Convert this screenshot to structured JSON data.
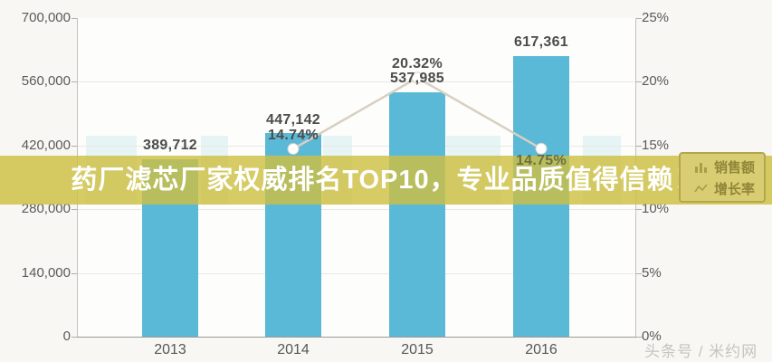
{
  "banner": {
    "text": "药厂滤芯厂家权威排名TOP10，专业品质值得信赖！"
  },
  "watermark": {
    "text": "头条号 / 米约网"
  },
  "legend": {
    "items": [
      {
        "label": "销售额",
        "icon": "bar-chart-icon"
      },
      {
        "label": "增长率",
        "icon": "line-chart-icon"
      }
    ]
  },
  "colors": {
    "bar": "#5ab9d7",
    "line": "#d8cfc2",
    "marker": "#ffffff",
    "banner": "#cdbf42",
    "legend_bg": "#d9cd74",
    "legend_border": "#b3a74e",
    "legend_text": "#8f8638",
    "label_text": "#4c4c4c",
    "watermark": "#c6c4c1"
  },
  "chart_data": {
    "type": "bar",
    "categories": [
      "2013",
      "2014",
      "2015",
      "2016"
    ],
    "series": [
      {
        "name": "销售额",
        "type": "bar",
        "values": [
          389712,
          447142,
          537985,
          617361
        ],
        "labels": [
          "389,712",
          "447,142",
          "537,985",
          "617,361"
        ]
      },
      {
        "name": "增长率",
        "type": "line",
        "values": [
          null,
          14.74,
          20.32,
          14.75
        ],
        "labels": [
          null,
          "14.74%",
          "20.32%",
          "14.75%"
        ]
      }
    ],
    "left_axis": {
      "ticks": [
        "0",
        "140,000",
        "280,000",
        "420,000",
        "560,000",
        "700,000"
      ],
      "values": [
        0,
        140000,
        280000,
        420000,
        560000,
        700000
      ],
      "range": [
        0,
        700000
      ]
    },
    "right_axis": {
      "ticks": [
        "0%",
        "5%",
        "10%",
        "15%",
        "20%",
        "25%"
      ],
      "values": [
        0,
        5,
        10,
        15,
        20,
        25
      ],
      "range": [
        0,
        25
      ]
    },
    "grid": true,
    "legend_position": "right"
  }
}
